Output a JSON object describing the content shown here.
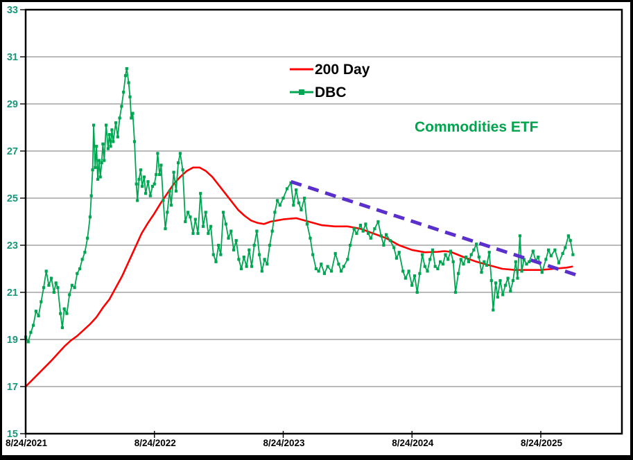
{
  "chart_data": {
    "type": "line",
    "title": "",
    "annotation": "Commodities ETF",
    "x_unit": "years since 8/24/2021",
    "x_tick_labels": [
      "8/24/2021",
      "8/24/2022",
      "8/24/2023",
      "8/24/2024",
      "8/24/2025"
    ],
    "x_tick_positions": [
      0,
      1,
      2,
      3,
      4
    ],
    "xlim": [
      0,
      4.63
    ],
    "ylim": [
      15,
      33
    ],
    "y_ticks": [
      33,
      31,
      29,
      27,
      25,
      23,
      21,
      19,
      17,
      15
    ],
    "grid": "horizontal-only",
    "legend_position": "top-center-inside",
    "colors": {
      "y_axis_labels": "#1A9678",
      "x_axis_labels": "#000000",
      "gridline": "#909090",
      "plot_border": "#000000",
      "annotation": "#00A44D",
      "legend_text": "#000000"
    },
    "series": [
      {
        "name": "200 Day",
        "color": "#FF0000",
        "style": "line",
        "show_in_legend": true,
        "points": [
          [
            0,
            17.0
          ],
          [
            0.1,
            17.55
          ],
          [
            0.2,
            18.1
          ],
          [
            0.3,
            18.7
          ],
          [
            0.35,
            18.95
          ],
          [
            0.4,
            19.15
          ],
          [
            0.45,
            19.4
          ],
          [
            0.5,
            19.65
          ],
          [
            0.55,
            19.95
          ],
          [
            0.6,
            20.35
          ],
          [
            0.65,
            20.7
          ],
          [
            0.7,
            21.2
          ],
          [
            0.75,
            21.7
          ],
          [
            0.8,
            22.3
          ],
          [
            0.85,
            22.9
          ],
          [
            0.9,
            23.5
          ],
          [
            0.95,
            23.95
          ],
          [
            1.0,
            24.35
          ],
          [
            1.05,
            24.8
          ],
          [
            1.1,
            25.2
          ],
          [
            1.15,
            25.6
          ],
          [
            1.2,
            25.9
          ],
          [
            1.25,
            26.15
          ],
          [
            1.3,
            26.3
          ],
          [
            1.35,
            26.3
          ],
          [
            1.4,
            26.15
          ],
          [
            1.45,
            25.9
          ],
          [
            1.5,
            25.55
          ],
          [
            1.55,
            25.2
          ],
          [
            1.6,
            24.85
          ],
          [
            1.65,
            24.5
          ],
          [
            1.7,
            24.25
          ],
          [
            1.75,
            24.05
          ],
          [
            1.8,
            23.95
          ],
          [
            1.85,
            23.9
          ],
          [
            1.9,
            24.0
          ],
          [
            1.95,
            24.05
          ],
          [
            2.0,
            24.1
          ],
          [
            2.1,
            24.15
          ],
          [
            2.2,
            24.0
          ],
          [
            2.3,
            23.85
          ],
          [
            2.4,
            23.8
          ],
          [
            2.5,
            23.8
          ],
          [
            2.6,
            23.7
          ],
          [
            2.7,
            23.5
          ],
          [
            2.8,
            23.3
          ],
          [
            2.9,
            23.0
          ],
          [
            3.0,
            22.8
          ],
          [
            3.1,
            22.7
          ],
          [
            3.2,
            22.72
          ],
          [
            3.25,
            22.75
          ],
          [
            3.3,
            22.72
          ],
          [
            3.4,
            22.5
          ],
          [
            3.5,
            22.3
          ],
          [
            3.6,
            22.15
          ],
          [
            3.7,
            22.0
          ],
          [
            3.8,
            21.95
          ],
          [
            3.9,
            21.95
          ],
          [
            4.0,
            21.95
          ],
          [
            4.1,
            22.0
          ],
          [
            4.2,
            22.05
          ],
          [
            4.25,
            22.1
          ]
        ]
      },
      {
        "name": "DBC",
        "color": "#00A551",
        "style": "line-with-square-markers",
        "show_in_legend": true,
        "points": [
          [
            0,
            19.1
          ],
          [
            0.02,
            18.9
          ],
          [
            0.04,
            19.3
          ],
          [
            0.06,
            19.6
          ],
          [
            0.08,
            20.2
          ],
          [
            0.1,
            20.0
          ],
          [
            0.12,
            20.6
          ],
          [
            0.14,
            21.2
          ],
          [
            0.16,
            21.9
          ],
          [
            0.18,
            21.3
          ],
          [
            0.2,
            21.6
          ],
          [
            0.22,
            21.0
          ],
          [
            0.235,
            21.4
          ],
          [
            0.25,
            21.2
          ],
          [
            0.27,
            20.1
          ],
          [
            0.285,
            19.5
          ],
          [
            0.3,
            20.3
          ],
          [
            0.32,
            20.1
          ],
          [
            0.34,
            20.9
          ],
          [
            0.36,
            21.3
          ],
          [
            0.38,
            21.2
          ],
          [
            0.4,
            21.8
          ],
          [
            0.42,
            22.0
          ],
          [
            0.44,
            22.4
          ],
          [
            0.46,
            22.7
          ],
          [
            0.48,
            23.3
          ],
          [
            0.5,
            24.2
          ],
          [
            0.51,
            25.1
          ],
          [
            0.52,
            26.2
          ],
          [
            0.528,
            28.1
          ],
          [
            0.54,
            26.3
          ],
          [
            0.55,
            27.2
          ],
          [
            0.56,
            25.8
          ],
          [
            0.57,
            26.6
          ],
          [
            0.58,
            25.9
          ],
          [
            0.59,
            26.5
          ],
          [
            0.6,
            27.3
          ],
          [
            0.61,
            26.6
          ],
          [
            0.625,
            28.1
          ],
          [
            0.64,
            27.1
          ],
          [
            0.65,
            27.7
          ],
          [
            0.66,
            27.2
          ],
          [
            0.67,
            27.9
          ],
          [
            0.68,
            27.4
          ],
          [
            0.7,
            28.2
          ],
          [
            0.715,
            27.6
          ],
          [
            0.73,
            28.4
          ],
          [
            0.745,
            28.9
          ],
          [
            0.76,
            29.5
          ],
          [
            0.775,
            30.2
          ],
          [
            0.785,
            30.5
          ],
          [
            0.8,
            29.9
          ],
          [
            0.81,
            29.3
          ],
          [
            0.82,
            28.4
          ],
          [
            0.832,
            28.6
          ],
          [
            0.845,
            27.4
          ],
          [
            0.86,
            25.6
          ],
          [
            0.868,
            24.9
          ],
          [
            0.88,
            25.8
          ],
          [
            0.893,
            26.2
          ],
          [
            0.905,
            25.5
          ],
          [
            0.92,
            25.9
          ],
          [
            0.932,
            25.2
          ],
          [
            0.95,
            25.7
          ],
          [
            0.968,
            25.1
          ],
          [
            0.985,
            25.5
          ],
          [
            1.0,
            25.6
          ],
          [
            1.013,
            26.0
          ],
          [
            1.025,
            26.9
          ],
          [
            1.04,
            26.0
          ],
          [
            1.052,
            26.4
          ],
          [
            1.068,
            24.9
          ],
          [
            1.085,
            23.7
          ],
          [
            1.1,
            24.4
          ],
          [
            1.118,
            25.3
          ],
          [
            1.13,
            24.7
          ],
          [
            1.15,
            26.1
          ],
          [
            1.168,
            25.3
          ],
          [
            1.185,
            26.5
          ],
          [
            1.2,
            26.9
          ],
          [
            1.22,
            26.2
          ],
          [
            1.24,
            24.0
          ],
          [
            1.26,
            24.4
          ],
          [
            1.278,
            24.2
          ],
          [
            1.3,
            23.5
          ],
          [
            1.318,
            24.1
          ],
          [
            1.338,
            23.5
          ],
          [
            1.358,
            25.2
          ],
          [
            1.378,
            23.8
          ],
          [
            1.398,
            24.4
          ],
          [
            1.418,
            23.5
          ],
          [
            1.438,
            23.8
          ],
          [
            1.458,
            22.6
          ],
          [
            1.478,
            22.3
          ],
          [
            1.498,
            23.0
          ],
          [
            1.515,
            22.6
          ],
          [
            1.535,
            24.4
          ],
          [
            1.555,
            23.9
          ],
          [
            1.575,
            23.3
          ],
          [
            1.595,
            23.6
          ],
          [
            1.615,
            22.8
          ],
          [
            1.635,
            23.2
          ],
          [
            1.655,
            22.4
          ],
          [
            1.675,
            22.0
          ],
          [
            1.695,
            22.5
          ],
          [
            1.715,
            22.1
          ],
          [
            1.735,
            22.8
          ],
          [
            1.755,
            22.1
          ],
          [
            1.775,
            23.0
          ],
          [
            1.795,
            23.6
          ],
          [
            1.815,
            22.6
          ],
          [
            1.835,
            21.9
          ],
          [
            1.855,
            22.4
          ],
          [
            1.875,
            22.2
          ],
          [
            1.895,
            23.0
          ],
          [
            1.915,
            23.6
          ],
          [
            1.935,
            24.4
          ],
          [
            1.955,
            24.9
          ],
          [
            1.975,
            24.7
          ],
          [
            2.0,
            25.0
          ],
          [
            2.03,
            25.4
          ],
          [
            2.06,
            25.65
          ],
          [
            2.08,
            24.7
          ],
          [
            2.1,
            25.35
          ],
          [
            2.12,
            24.8
          ],
          [
            2.14,
            24.5
          ],
          [
            2.165,
            25.0
          ],
          [
            2.185,
            23.9
          ],
          [
            2.21,
            23.3
          ],
          [
            2.23,
            22.6
          ],
          [
            2.255,
            22.0
          ],
          [
            2.275,
            21.9
          ],
          [
            2.295,
            22.2
          ],
          [
            2.32,
            21.8
          ],
          [
            2.345,
            22.1
          ],
          [
            2.375,
            21.9
          ],
          [
            2.405,
            22.65
          ],
          [
            2.43,
            22.2
          ],
          [
            2.45,
            21.9
          ],
          [
            2.47,
            22.1
          ],
          [
            2.5,
            22.4
          ],
          [
            2.52,
            23.0
          ],
          [
            2.55,
            23.7
          ],
          [
            2.57,
            23.5
          ],
          [
            2.6,
            23.85
          ],
          [
            2.62,
            23.6
          ],
          [
            2.64,
            23.9
          ],
          [
            2.66,
            23.5
          ],
          [
            2.68,
            23.3
          ],
          [
            2.71,
            23.7
          ],
          [
            2.737,
            24.0
          ],
          [
            2.76,
            23.4
          ],
          [
            2.78,
            23.0
          ],
          [
            2.8,
            23.45
          ],
          [
            2.83,
            23.2
          ],
          [
            2.86,
            22.9
          ],
          [
            2.88,
            22.45
          ],
          [
            2.9,
            22.7
          ],
          [
            2.93,
            21.9
          ],
          [
            2.95,
            21.6
          ],
          [
            2.975,
            21.9
          ],
          [
            3.0,
            21.3
          ],
          [
            3.02,
            21.7
          ],
          [
            3.04,
            21.0
          ],
          [
            3.06,
            21.8
          ],
          [
            3.08,
            22.6
          ],
          [
            3.1,
            22.1
          ],
          [
            3.12,
            21.9
          ],
          [
            3.14,
            22.4
          ],
          [
            3.16,
            22.8
          ],
          [
            3.18,
            22.1
          ],
          [
            3.2,
            22.0
          ],
          [
            3.22,
            22.3
          ],
          [
            3.24,
            22.2
          ],
          [
            3.26,
            22.6
          ],
          [
            3.28,
            22.4
          ],
          [
            3.3,
            22.75
          ],
          [
            3.32,
            22.3
          ],
          [
            3.338,
            21.0
          ],
          [
            3.36,
            21.8
          ],
          [
            3.38,
            22.4
          ],
          [
            3.4,
            22.2
          ],
          [
            3.42,
            22.5
          ],
          [
            3.44,
            22.3
          ],
          [
            3.46,
            22.6
          ],
          [
            3.48,
            22.8
          ],
          [
            3.5,
            23.05
          ],
          [
            3.52,
            22.5
          ],
          [
            3.54,
            21.85
          ],
          [
            3.56,
            22.3
          ],
          [
            3.58,
            22.15
          ],
          [
            3.6,
            22.7
          ],
          [
            3.617,
            21.5
          ],
          [
            3.63,
            20.25
          ],
          [
            3.65,
            21.4
          ],
          [
            3.665,
            20.8
          ],
          [
            3.685,
            21.5
          ],
          [
            3.705,
            20.9
          ],
          [
            3.725,
            21.3
          ],
          [
            3.745,
            21.6
          ],
          [
            3.765,
            21.05
          ],
          [
            3.785,
            21.5
          ],
          [
            3.805,
            22.3
          ],
          [
            3.82,
            21.6
          ],
          [
            3.838,
            23.4
          ],
          [
            3.852,
            21.9
          ],
          [
            3.87,
            22.4
          ],
          [
            3.89,
            22.2
          ],
          [
            3.91,
            22.3
          ],
          [
            3.94,
            22.75
          ],
          [
            3.96,
            22.35
          ],
          [
            3.98,
            22.5
          ],
          [
            4.01,
            21.85
          ],
          [
            4.04,
            22.4
          ],
          [
            4.06,
            22.8
          ],
          [
            4.08,
            22.55
          ],
          [
            4.11,
            22.8
          ],
          [
            4.14,
            22.25
          ],
          [
            4.17,
            22.65
          ],
          [
            4.19,
            22.9
          ],
          [
            4.215,
            23.4
          ],
          [
            4.23,
            23.2
          ],
          [
            4.25,
            22.6
          ]
        ]
      },
      {
        "name": "downtrend-line",
        "color": "#5B2FCC",
        "style": "dashed",
        "show_in_legend": false,
        "points": [
          [
            2.06,
            25.7
          ],
          [
            4.27,
            21.75
          ]
        ]
      }
    ]
  }
}
